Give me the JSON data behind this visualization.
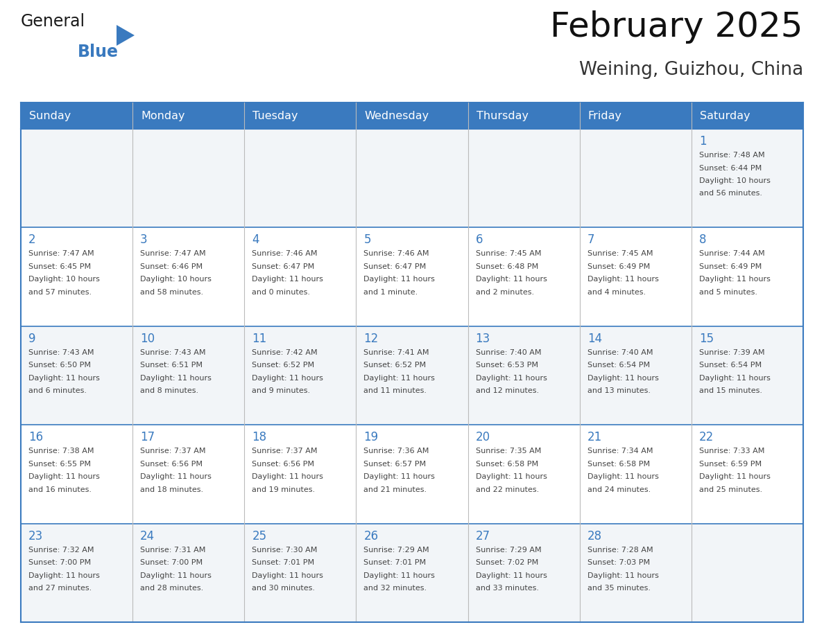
{
  "title": "February 2025",
  "subtitle": "Weining, Guizhou, China",
  "header_bg_color": "#3a7abf",
  "header_text_color": "#ffffff",
  "row_bg_even": "#f2f5f8",
  "row_bg_odd": "#ffffff",
  "grid_line_color": "#3a7abf",
  "day_number_color": "#3a7abf",
  "cell_text_color": "#444444",
  "days_of_week": [
    "Sunday",
    "Monday",
    "Tuesday",
    "Wednesday",
    "Thursday",
    "Friday",
    "Saturday"
  ],
  "logo_general_color": "#1a1a1a",
  "logo_blue_color": "#3a7abf",
  "weeks": [
    [
      {
        "day": null,
        "info": ""
      },
      {
        "day": null,
        "info": ""
      },
      {
        "day": null,
        "info": ""
      },
      {
        "day": null,
        "info": ""
      },
      {
        "day": null,
        "info": ""
      },
      {
        "day": null,
        "info": ""
      },
      {
        "day": 1,
        "info": "Sunrise: 7:48 AM\nSunset: 6:44 PM\nDaylight: 10 hours\nand 56 minutes."
      }
    ],
    [
      {
        "day": 2,
        "info": "Sunrise: 7:47 AM\nSunset: 6:45 PM\nDaylight: 10 hours\nand 57 minutes."
      },
      {
        "day": 3,
        "info": "Sunrise: 7:47 AM\nSunset: 6:46 PM\nDaylight: 10 hours\nand 58 minutes."
      },
      {
        "day": 4,
        "info": "Sunrise: 7:46 AM\nSunset: 6:47 PM\nDaylight: 11 hours\nand 0 minutes."
      },
      {
        "day": 5,
        "info": "Sunrise: 7:46 AM\nSunset: 6:47 PM\nDaylight: 11 hours\nand 1 minute."
      },
      {
        "day": 6,
        "info": "Sunrise: 7:45 AM\nSunset: 6:48 PM\nDaylight: 11 hours\nand 2 minutes."
      },
      {
        "day": 7,
        "info": "Sunrise: 7:45 AM\nSunset: 6:49 PM\nDaylight: 11 hours\nand 4 minutes."
      },
      {
        "day": 8,
        "info": "Sunrise: 7:44 AM\nSunset: 6:49 PM\nDaylight: 11 hours\nand 5 minutes."
      }
    ],
    [
      {
        "day": 9,
        "info": "Sunrise: 7:43 AM\nSunset: 6:50 PM\nDaylight: 11 hours\nand 6 minutes."
      },
      {
        "day": 10,
        "info": "Sunrise: 7:43 AM\nSunset: 6:51 PM\nDaylight: 11 hours\nand 8 minutes."
      },
      {
        "day": 11,
        "info": "Sunrise: 7:42 AM\nSunset: 6:52 PM\nDaylight: 11 hours\nand 9 minutes."
      },
      {
        "day": 12,
        "info": "Sunrise: 7:41 AM\nSunset: 6:52 PM\nDaylight: 11 hours\nand 11 minutes."
      },
      {
        "day": 13,
        "info": "Sunrise: 7:40 AM\nSunset: 6:53 PM\nDaylight: 11 hours\nand 12 minutes."
      },
      {
        "day": 14,
        "info": "Sunrise: 7:40 AM\nSunset: 6:54 PM\nDaylight: 11 hours\nand 13 minutes."
      },
      {
        "day": 15,
        "info": "Sunrise: 7:39 AM\nSunset: 6:54 PM\nDaylight: 11 hours\nand 15 minutes."
      }
    ],
    [
      {
        "day": 16,
        "info": "Sunrise: 7:38 AM\nSunset: 6:55 PM\nDaylight: 11 hours\nand 16 minutes."
      },
      {
        "day": 17,
        "info": "Sunrise: 7:37 AM\nSunset: 6:56 PM\nDaylight: 11 hours\nand 18 minutes."
      },
      {
        "day": 18,
        "info": "Sunrise: 7:37 AM\nSunset: 6:56 PM\nDaylight: 11 hours\nand 19 minutes."
      },
      {
        "day": 19,
        "info": "Sunrise: 7:36 AM\nSunset: 6:57 PM\nDaylight: 11 hours\nand 21 minutes."
      },
      {
        "day": 20,
        "info": "Sunrise: 7:35 AM\nSunset: 6:58 PM\nDaylight: 11 hours\nand 22 minutes."
      },
      {
        "day": 21,
        "info": "Sunrise: 7:34 AM\nSunset: 6:58 PM\nDaylight: 11 hours\nand 24 minutes."
      },
      {
        "day": 22,
        "info": "Sunrise: 7:33 AM\nSunset: 6:59 PM\nDaylight: 11 hours\nand 25 minutes."
      }
    ],
    [
      {
        "day": 23,
        "info": "Sunrise: 7:32 AM\nSunset: 7:00 PM\nDaylight: 11 hours\nand 27 minutes."
      },
      {
        "day": 24,
        "info": "Sunrise: 7:31 AM\nSunset: 7:00 PM\nDaylight: 11 hours\nand 28 minutes."
      },
      {
        "day": 25,
        "info": "Sunrise: 7:30 AM\nSunset: 7:01 PM\nDaylight: 11 hours\nand 30 minutes."
      },
      {
        "day": 26,
        "info": "Sunrise: 7:29 AM\nSunset: 7:01 PM\nDaylight: 11 hours\nand 32 minutes."
      },
      {
        "day": 27,
        "info": "Sunrise: 7:29 AM\nSunset: 7:02 PM\nDaylight: 11 hours\nand 33 minutes."
      },
      {
        "day": 28,
        "info": "Sunrise: 7:28 AM\nSunset: 7:03 PM\nDaylight: 11 hours\nand 35 minutes."
      },
      {
        "day": null,
        "info": ""
      }
    ]
  ]
}
